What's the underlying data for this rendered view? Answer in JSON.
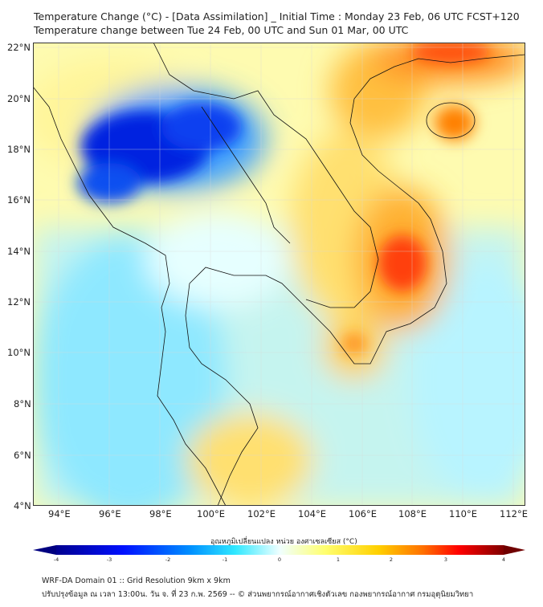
{
  "title": {
    "line1": "Temperature Change (°C) - [Data Assimilation] _ Initial Time : Monday 23 Feb, 06 UTC FCST+120",
    "line2": "Temperature change between Tue 24 Feb, 00 UTC and Sun 01 Mar, 00 UTC"
  },
  "lat_ticks": [
    "22°N",
    "20°N",
    "18°N",
    "16°N",
    "14°N",
    "12°N",
    "10°N",
    "8°N",
    "6°N",
    "4°N"
  ],
  "lon_ticks": [
    "94°E",
    "96°E",
    "98°E",
    "100°E",
    "102°E",
    "104°E",
    "106°E",
    "108°E",
    "110°E",
    "112°E"
  ],
  "colorbar": {
    "label": "อุณหภูมิเปลี่ยนแปลง หน่วย องศาเซลเซียส (°C)",
    "ticks": [
      "-4",
      "-3",
      "-2",
      "-1",
      "0",
      "1",
      "2",
      "3",
      "4"
    ],
    "min": -4,
    "max": 4,
    "colors": [
      "#00007f",
      "#0000ff",
      "#0080ff",
      "#30e0ff",
      "#d8ffff",
      "#ffff80",
      "#ffd000",
      "#ff8000",
      "#ff0000",
      "#800000"
    ]
  },
  "footer": {
    "line1": "WRF-DA Domain 01 :: Grid Resolution 9km x 9km",
    "line2": "ปรับปรุงข้อมูล ณ เวลา 13:00น. วัน จ. ที่ 23 ก.พ. 2569 -- © ส่วนพยากรณ์อากาศเชิงตัวเลข กองพยากรณ์อากาศ กรมอุตุนิยมวิทยา"
  }
}
